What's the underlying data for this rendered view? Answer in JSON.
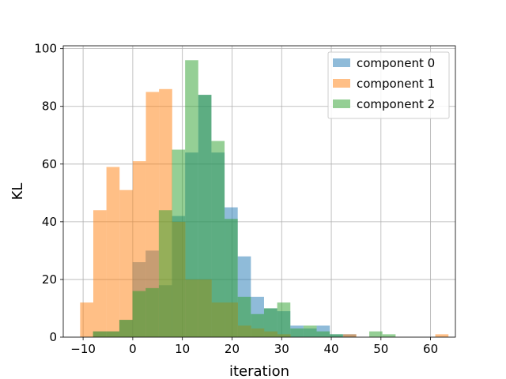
{
  "chart_data": {
    "type": "histogram",
    "title": "",
    "xlabel": "iteration",
    "ylabel": "KL",
    "xlim": [
      -14,
      65
    ],
    "ylim": [
      0,
      101
    ],
    "x_ticks": [
      -10,
      0,
      10,
      20,
      30,
      40,
      50,
      60
    ],
    "y_ticks": [
      0,
      20,
      40,
      60,
      80,
      100
    ],
    "grid": true,
    "legend_position": "top-right",
    "bin_width": 2.65,
    "series": [
      {
        "name": "component 0",
        "color": "#1f77b4",
        "bin_start": -8,
        "counts": [
          2,
          2,
          6,
          26,
          30,
          18,
          42,
          64,
          84,
          64,
          45,
          28,
          14,
          10,
          9,
          4,
          3,
          4,
          1,
          1
        ]
      },
      {
        "name": "component 1",
        "color": "#ff7f0e",
        "bin_start": -10.6,
        "counts": [
          12,
          44,
          59,
          51,
          61,
          85,
          86,
          40,
          20,
          20,
          12,
          12,
          4,
          3,
          2,
          1,
          0,
          0,
          0,
          0,
          1,
          0,
          0,
          0,
          0,
          0,
          0,
          1
        ]
      },
      {
        "name": "component 2",
        "color": "#2ca02c",
        "bin_start": -8,
        "counts": [
          2,
          2,
          6,
          16,
          17,
          44,
          65,
          96,
          84,
          68,
          41,
          14,
          8,
          10,
          12,
          3,
          4,
          2,
          1,
          0,
          0,
          2,
          1
        ]
      }
    ]
  }
}
